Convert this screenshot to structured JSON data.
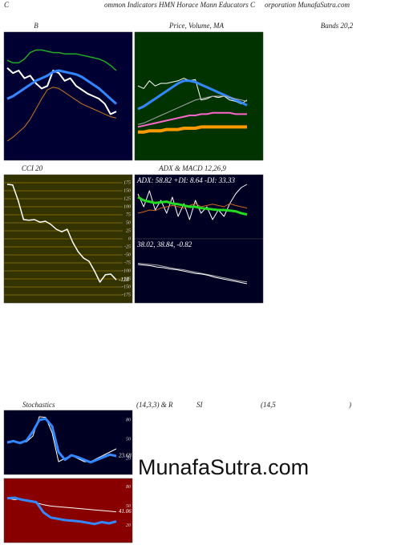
{
  "header": {
    "left": "C",
    "middle": "ommon Indicators HMN Horace Mann Educators C",
    "right": "orporation MunafaSutra.com"
  },
  "watermark": "MunafaSutra.com",
  "row_heading": [
    "Stochastics",
    "(14,3,3) & R",
    "SI",
    "(14,5",
    ")"
  ],
  "chart_data": [
    {
      "type": "line",
      "title": "B",
      "subtitle": "Bands 20,2",
      "background": "#000033",
      "ylim": [
        0,
        100
      ],
      "series": [
        {
          "color": "#22aa22",
          "width": 1.5,
          "values": [
            78,
            76,
            76,
            79,
            84,
            86,
            86,
            85,
            84,
            84,
            83,
            83,
            83,
            82,
            81,
            80,
            79,
            77,
            74,
            70
          ]
        },
        {
          "color": "#ffffff",
          "width": 2,
          "values": [
            72,
            68,
            70,
            64,
            66,
            60,
            56,
            58,
            70,
            68,
            62,
            64,
            58,
            55,
            52,
            50,
            48,
            44,
            36,
            38
          ]
        },
        {
          "color": "#3388ff",
          "width": 3,
          "values": [
            48,
            50,
            53,
            56,
            59,
            62,
            64,
            66,
            69,
            70,
            69,
            68,
            67,
            65,
            62,
            59,
            56,
            52,
            48,
            44
          ]
        },
        {
          "color": "#cc7722",
          "width": 1,
          "values": [
            15,
            18,
            22,
            26,
            32,
            40,
            48,
            55,
            57,
            56,
            53,
            50,
            47,
            44,
            42,
            40,
            38,
            36,
            34,
            33
          ]
        }
      ]
    },
    {
      "type": "line",
      "title": "Price, Volume, MA",
      "background": "#003300",
      "ylim": [
        0,
        100
      ],
      "series": [
        {
          "color": "#ffffff",
          "width": 1,
          "values": [
            58,
            56,
            62,
            58,
            60,
            60,
            61,
            62,
            64,
            62,
            63,
            47,
            48,
            50,
            49,
            50,
            47,
            46,
            44,
            47
          ]
        },
        {
          "color": "#3388ff",
          "width": 3,
          "values": [
            40,
            42,
            45,
            48,
            51,
            54,
            57,
            60,
            62,
            62,
            61,
            59,
            57,
            55,
            53,
            51,
            49,
            47,
            45,
            43
          ]
        },
        {
          "color": "#aaaaaa",
          "width": 1,
          "values": [
            28,
            29,
            31,
            33,
            35,
            37,
            39,
            41,
            43,
            45,
            47,
            48,
            49,
            50,
            50,
            50,
            49,
            48,
            47,
            46
          ]
        },
        {
          "color": "#ff66cc",
          "width": 2,
          "values": [
            26,
            27,
            28,
            29,
            30,
            31,
            32,
            33,
            34,
            35,
            35,
            36,
            36,
            37,
            37,
            37,
            37,
            36,
            36,
            36
          ]
        },
        {
          "color": "#ff9900",
          "width": 4,
          "values": [
            22,
            22,
            23,
            23,
            23,
            24,
            24,
            24,
            25,
            25,
            25,
            26,
            26,
            26,
            26,
            26,
            26,
            26,
            26,
            26
          ]
        }
      ]
    },
    {
      "type": "line",
      "title": "CCI 20",
      "background": "#333300",
      "grid": true,
      "gridcolor": "#997700",
      "ylim": [
        -200,
        200
      ],
      "yticks": [
        175,
        150,
        125,
        100,
        75,
        50,
        25,
        0,
        -25,
        -50,
        -75,
        -100,
        -125,
        -150,
        -175
      ],
      "series": [
        {
          "color": "#ffffff",
          "width": 1.5,
          "values": [
            170,
            168,
            120,
            60,
            58,
            60,
            52,
            55,
            45,
            30,
            22,
            30,
            -10,
            -40,
            -60,
            -70,
            -100,
            -135,
            -112,
            -110,
            -128
          ],
          "value_labels": [
            null,
            null,
            null,
            null,
            null,
            null,
            null,
            null,
            null,
            null,
            null,
            null,
            null,
            null,
            null,
            null,
            null,
            null,
            null,
            null,
            "-128"
          ]
        }
      ]
    },
    {
      "type": "line",
      "title": "ADX  & MACD 12,26,9",
      "annotation": "ADX: 58.82  +DI: 8.64  -DI: 33.33",
      "background": "#000022",
      "ylim": [
        0,
        100
      ],
      "series": [
        {
          "color": "#ffffff",
          "width": 1,
          "values": [
            70,
            50,
            75,
            45,
            60,
            40,
            65,
            35,
            55,
            30,
            60,
            40,
            50,
            30,
            45,
            35,
            55,
            70,
            80,
            85
          ]
        },
        {
          "color": "#cc6622",
          "width": 1,
          "values": [
            40,
            42,
            45,
            44,
            48,
            50,
            52,
            50,
            48,
            52,
            55,
            50,
            52,
            54,
            52,
            50,
            55,
            52,
            50,
            48
          ]
        },
        {
          "color": "#22dd22",
          "width": 3,
          "values": [
            65,
            60,
            58,
            56,
            57,
            58,
            55,
            54,
            52,
            50,
            50,
            48,
            47,
            46,
            45,
            45,
            44,
            43,
            40,
            38
          ]
        }
      ]
    },
    {
      "type": "line",
      "annotation": "38.02,  38.84,  -0.82",
      "background": "#000022",
      "ylim": [
        0,
        100
      ],
      "series": [
        {
          "color": "#aaaaaa",
          "width": 1,
          "values": [
            62,
            61,
            60,
            59,
            57,
            55,
            53,
            52,
            50,
            48,
            46,
            44,
            42,
            40,
            38,
            36,
            34,
            33
          ]
        },
        {
          "color": "#ffffff",
          "width": 1,
          "values": [
            60,
            59,
            58,
            56,
            55,
            53,
            52,
            50,
            48,
            46,
            45,
            43,
            40,
            38,
            36,
            34,
            32,
            30
          ]
        }
      ]
    },
    {
      "type": "line",
      "background": "#000022",
      "ylim": [
        -5,
        95
      ],
      "yticks": [
        80,
        50,
        20
      ],
      "series": [
        {
          "color": "#ffffff",
          "width": 1,
          "values": [
            45,
            48,
            45,
            46,
            55,
            85,
            84,
            60,
            15,
            20,
            25,
            20,
            15,
            15,
            20,
            25,
            30,
            35
          ]
        },
        {
          "color": "#3388ff",
          "width": 3,
          "values": [
            45,
            47,
            44,
            48,
            62,
            80,
            82,
            70,
            30,
            18,
            25,
            22,
            18,
            14,
            18,
            22,
            26,
            23.68
          ],
          "value_labels": [
            null,
            null,
            null,
            null,
            null,
            null,
            null,
            null,
            null,
            null,
            null,
            null,
            null,
            null,
            null,
            null,
            null,
            "23.68"
          ]
        }
      ]
    },
    {
      "type": "line",
      "background": "#880000",
      "ylim": [
        -7,
        93
      ],
      "yticks": [
        80,
        50,
        20
      ],
      "series": [
        {
          "color": "#ffffff",
          "width": 1,
          "values": [
            62,
            60,
            61,
            58,
            55,
            52,
            50,
            49,
            48,
            47,
            46,
            45,
            44,
            43,
            42,
            41.06
          ],
          "value_labels": [
            null,
            null,
            null,
            null,
            null,
            null,
            null,
            null,
            null,
            null,
            null,
            null,
            null,
            null,
            null,
            "41.06"
          ]
        },
        {
          "color": "#3388ff",
          "width": 3,
          "values": [
            62,
            63,
            60,
            58,
            56,
            40,
            32,
            30,
            28,
            27,
            26,
            24,
            22,
            25,
            23,
            26
          ]
        }
      ]
    }
  ]
}
